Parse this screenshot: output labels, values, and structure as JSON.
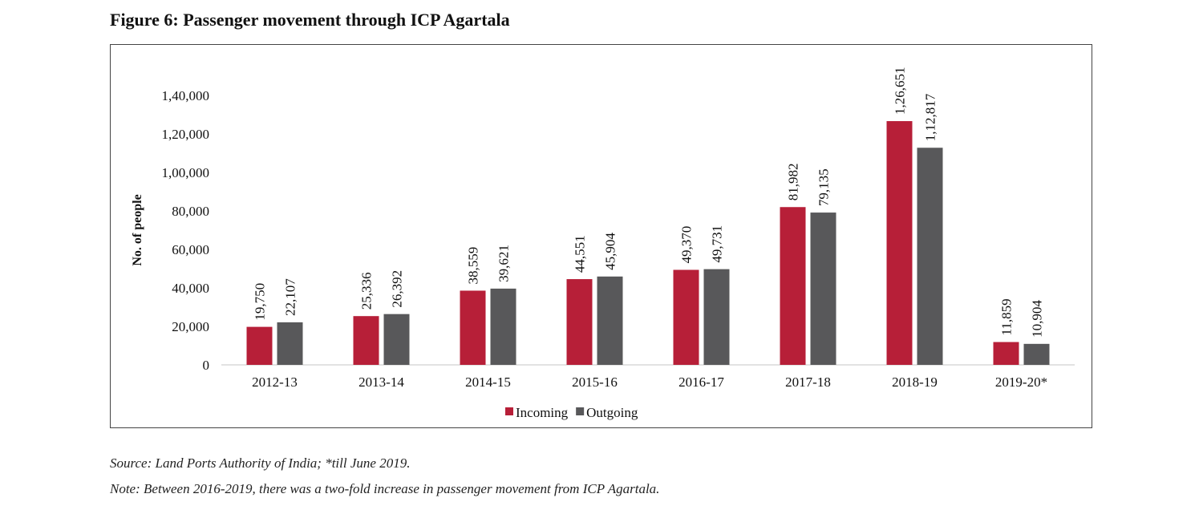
{
  "figure_title": "Figure 6: Passenger movement through ICP Agartala",
  "source": "Source: Land Ports Authority of India; *till June 2019.",
  "note": "Note: Between 2016-2019, there was a two-fold increase in passenger movement from ICP Agartala.",
  "chart_data": {
    "type": "bar",
    "title": "",
    "xlabel": "",
    "ylabel": "No. of people",
    "ylim": [
      0,
      140000
    ],
    "yticks": [
      0,
      20000,
      40000,
      60000,
      80000,
      100000,
      120000,
      140000
    ],
    "ytick_labels": [
      "0",
      "20,000",
      "40,000",
      "60,000",
      "80,000",
      "1,00,000",
      "1,20,000",
      "1,40,000"
    ],
    "grid": false,
    "legend": "bottom",
    "categories": [
      "2012-13",
      "2013-14",
      "2014-15",
      "2015-16",
      "2016-17",
      "2017-18",
      "2018-19",
      "2019-20*"
    ],
    "series": [
      {
        "name": "Incoming",
        "color": "#b71f38",
        "values": [
          19750,
          25336,
          38559,
          44551,
          49370,
          81982,
          126651,
          11859
        ],
        "labels": [
          "19,750",
          "25,336",
          "38,559",
          "44,551",
          "49,370",
          "81,982",
          "1,26,651",
          "11,859"
        ]
      },
      {
        "name": "Outgoing",
        "color": "#58585a",
        "values": [
          22107,
          26392,
          39621,
          45904,
          49731,
          79135,
          112817,
          10904
        ],
        "labels": [
          "22,107",
          "26,392",
          "39,621",
          "45,904",
          "49,731",
          "79,135",
          "1,12,817",
          "10,904"
        ]
      }
    ]
  }
}
